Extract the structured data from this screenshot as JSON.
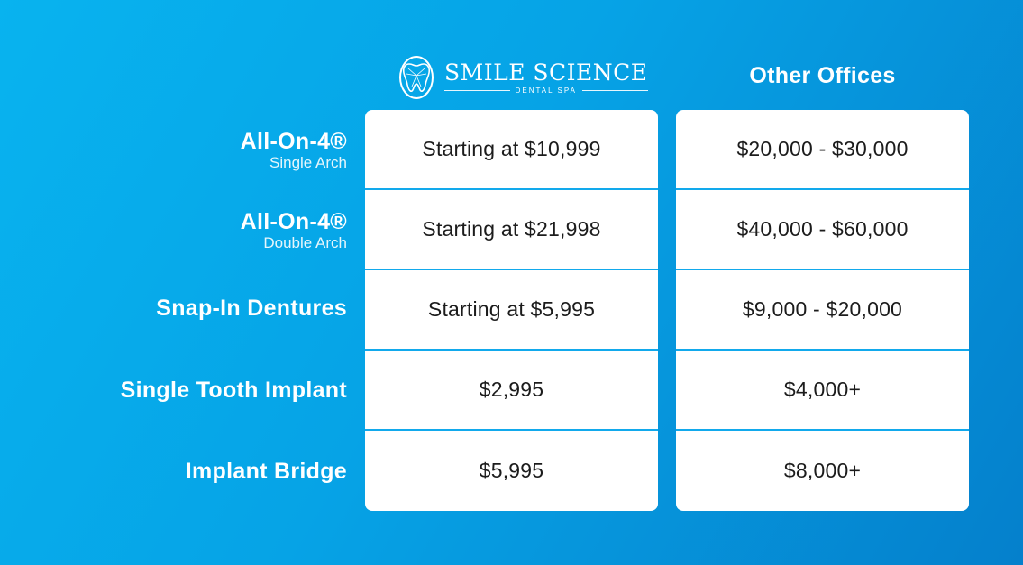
{
  "brand": {
    "name": "SMILE SCIENCE",
    "tagline": "DENTAL SPA",
    "logo_icon": "tooth-icon",
    "accent_color": "#06a3e6",
    "divider_color": "#12a9ec"
  },
  "columns": {
    "competitor_header": "Other Offices"
  },
  "rows": [
    {
      "label": "All-On-4®",
      "sublabel": "Single Arch",
      "smile_science": "Starting at $10,999",
      "other_offices": "$20,000 - $30,000"
    },
    {
      "label": "All-On-4®",
      "sublabel": "Double Arch",
      "smile_science": "Starting at $21,998",
      "other_offices": "$40,000 - $60,000"
    },
    {
      "label": "Snap-In Dentures",
      "sublabel": "",
      "smile_science": "Starting at $5,995",
      "other_offices": "$9,000 - $20,000"
    },
    {
      "label": "Single Tooth Implant",
      "sublabel": "",
      "smile_science": "$2,995",
      "other_offices": "$4,000+"
    },
    {
      "label": "Implant Bridge",
      "sublabel": "",
      "smile_science": "$5,995",
      "other_offices": "$8,000+"
    }
  ]
}
